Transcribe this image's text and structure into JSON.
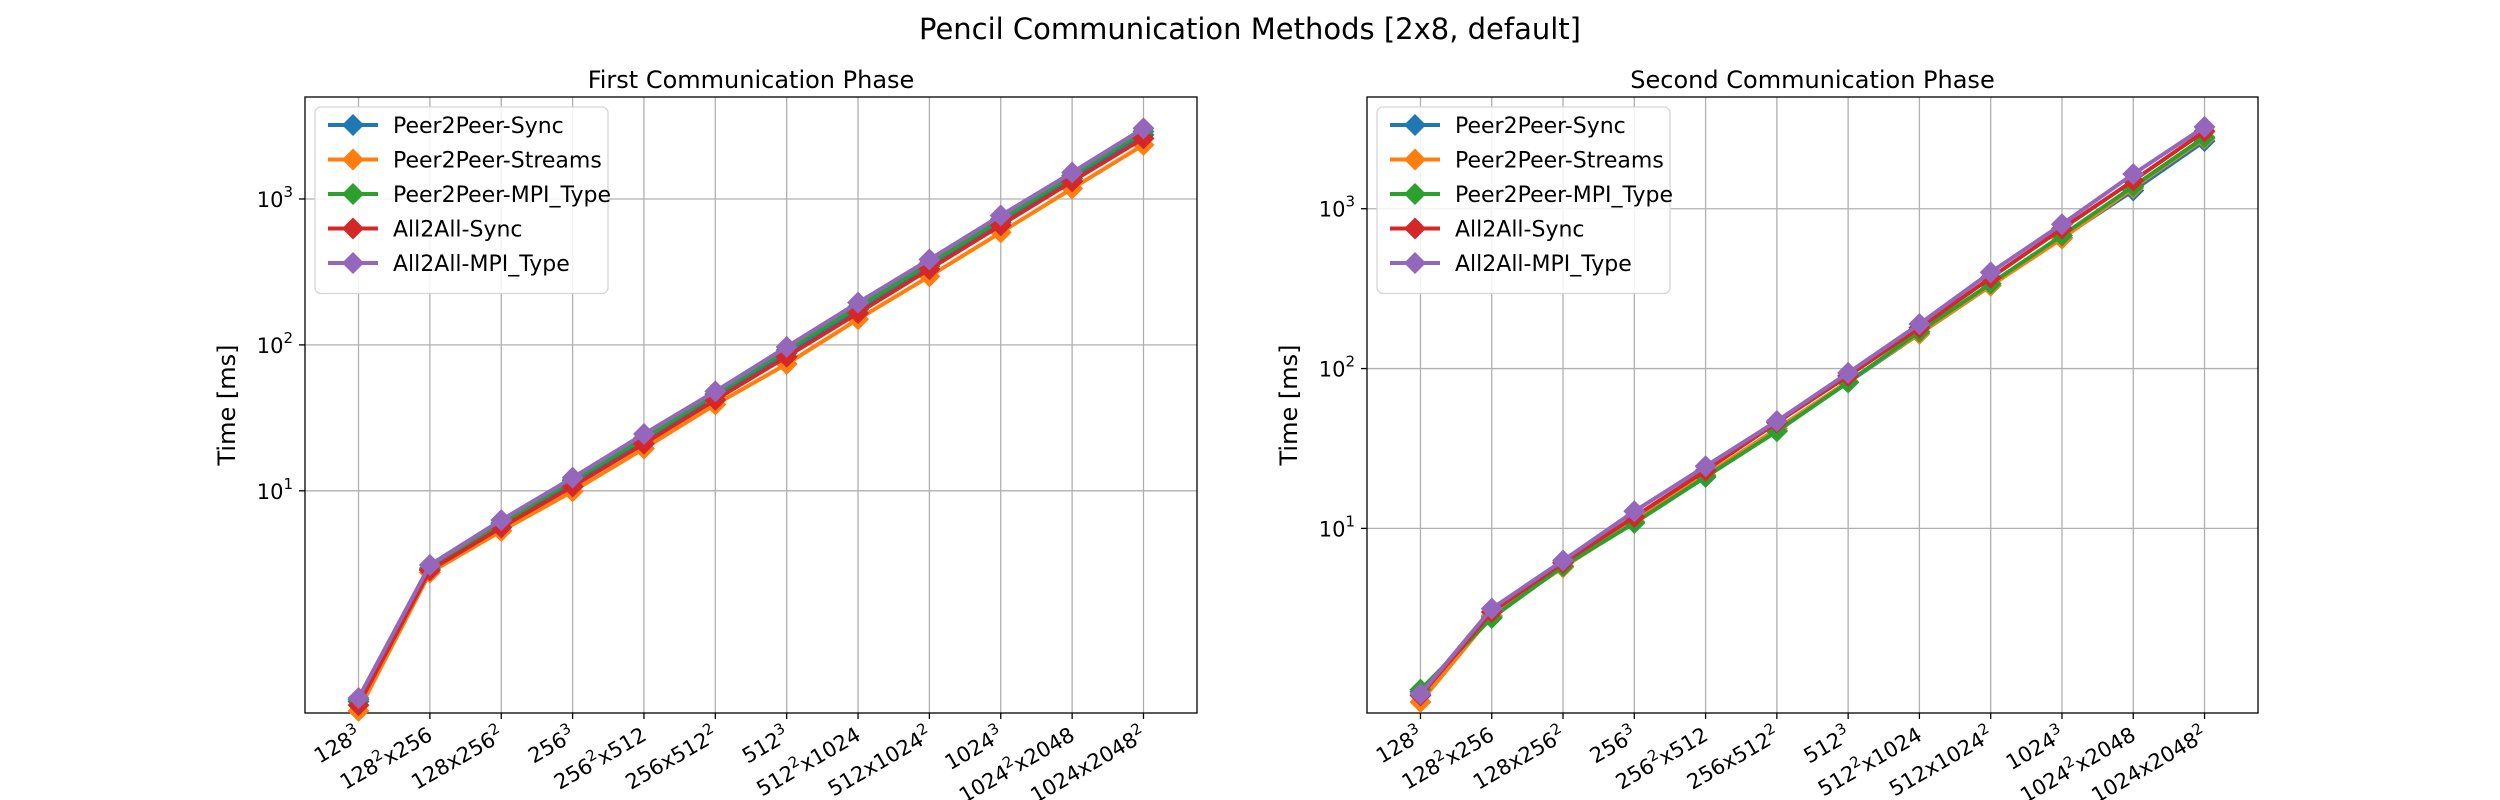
{
  "figure": {
    "title": "Pencil Communication Methods [2x8, default]"
  },
  "chart_data": [
    {
      "type": "line",
      "title": "First Communication Phase",
      "xlabel": "",
      "ylabel": "Time [ms]",
      "yscale": "log",
      "ylim": [
        0.3,
        5000
      ],
      "yticks": [
        {
          "base": "10",
          "exp": "1"
        },
        {
          "base": "10",
          "exp": "2"
        },
        {
          "base": "10",
          "exp": "3"
        }
      ],
      "grid": true,
      "legend_position": "top-left",
      "categories": [
        {
          "a": "128",
          "ae": "3",
          "b": "",
          "be": ""
        },
        {
          "a": "128",
          "ae": "2",
          "b": "x256",
          "be": ""
        },
        {
          "a": "128x256",
          "ae": "2",
          "b": "",
          "be": ""
        },
        {
          "a": "256",
          "ae": "3",
          "b": "",
          "be": ""
        },
        {
          "a": "256",
          "ae": "2",
          "b": "x512",
          "be": ""
        },
        {
          "a": "256x512",
          "ae": "2",
          "b": "",
          "be": ""
        },
        {
          "a": "512",
          "ae": "3",
          "b": "",
          "be": ""
        },
        {
          "a": "512",
          "ae": "2",
          "b": "x1024",
          "be": ""
        },
        {
          "a": "512x1024",
          "ae": "2",
          "b": "",
          "be": ""
        },
        {
          "a": "1024",
          "ae": "3",
          "b": "",
          "be": ""
        },
        {
          "a": "1024",
          "ae": "2",
          "b": "x2048",
          "be": ""
        },
        {
          "a": "1024x2048",
          "ae": "2",
          "b": "",
          "be": ""
        }
      ],
      "series": [
        {
          "name": "Peer2Peer-Sync",
          "color": "#1f77b4",
          "values": [
            0.36,
            2.9,
            5.8,
            11.5,
            22,
            44,
            88,
            175,
            345,
            690,
            1380,
            2750
          ]
        },
        {
          "name": "Peer2Peer-Streams",
          "color": "#ff7f0e",
          "values": [
            0.31,
            2.75,
            5.3,
            9.9,
            19.5,
            39,
            74,
            150,
            295,
            590,
            1180,
            2350
          ]
        },
        {
          "name": "Peer2Peer-MPI_Type",
          "color": "#2ca02c",
          "values": [
            0.37,
            2.95,
            6.0,
            11.8,
            23,
            46,
            92,
            182,
            362,
            725,
            1450,
            2900
          ]
        },
        {
          "name": "All2All-Sync",
          "color": "#d62728",
          "values": [
            0.34,
            2.85,
            5.6,
            10.7,
            21,
            42,
            83,
            165,
            330,
            660,
            1320,
            2600
          ]
        },
        {
          "name": "All2All-MPI_Type",
          "color": "#9467bd",
          "values": [
            0.38,
            3.1,
            6.3,
            12.3,
            24.5,
            48,
            97,
            195,
            385,
            770,
            1520,
            3050
          ]
        }
      ]
    },
    {
      "type": "line",
      "title": "Second Communication Phase",
      "xlabel": "",
      "ylabel": "Time [ms]",
      "yscale": "log",
      "ylim": [
        0.7,
        5000
      ],
      "yticks": [
        {
          "base": "10",
          "exp": "1"
        },
        {
          "base": "10",
          "exp": "2"
        },
        {
          "base": "10",
          "exp": "3"
        }
      ],
      "grid": true,
      "legend_position": "top-left",
      "categories": [
        {
          "a": "128",
          "ae": "3",
          "b": "",
          "be": ""
        },
        {
          "a": "128",
          "ae": "2",
          "b": "x256",
          "be": ""
        },
        {
          "a": "128x256",
          "ae": "2",
          "b": "",
          "be": ""
        },
        {
          "a": "256",
          "ae": "3",
          "b": "",
          "be": ""
        },
        {
          "a": "256",
          "ae": "2",
          "b": "x512",
          "be": ""
        },
        {
          "a": "256x512",
          "ae": "2",
          "b": "",
          "be": ""
        },
        {
          "a": "512",
          "ae": "3",
          "b": "",
          "be": ""
        },
        {
          "a": "512",
          "ae": "2",
          "b": "x1024",
          "be": ""
        },
        {
          "a": "512x1024",
          "ae": "2",
          "b": "",
          "be": ""
        },
        {
          "a": "1024",
          "ae": "3",
          "b": "",
          "be": ""
        },
        {
          "a": "1024",
          "ae": "2",
          "b": "x2048",
          "be": ""
        },
        {
          "a": "1024x2048",
          "ae": "2",
          "b": "",
          "be": ""
        }
      ],
      "series": [
        {
          "name": "Peer2Peer-Sync",
          "color": "#1f77b4",
          "values": [
            0.95,
            2.8,
            5.8,
            11.0,
            21,
            41,
            82,
            165,
            330,
            660,
            1300,
            2650
          ]
        },
        {
          "name": "Peer2Peer-Streams",
          "color": "#ff7f0e",
          "values": [
            0.82,
            2.85,
            5.7,
            11.0,
            21.5,
            42,
            83,
            165,
            330,
            650,
            1350,
            2750
          ]
        },
        {
          "name": "Peer2Peer-MPI_Type",
          "color": "#2ca02c",
          "values": [
            0.98,
            2.75,
            5.8,
            10.8,
            21,
            40.5,
            82,
            170,
            340,
            680,
            1380,
            2800
          ]
        },
        {
          "name": "All2All-Sync",
          "color": "#d62728",
          "values": [
            0.9,
            3.0,
            6.1,
            11.8,
            23,
            46,
            90,
            180,
            370,
            750,
            1500,
            3050
          ]
        },
        {
          "name": "All2All-MPI_Type",
          "color": "#9467bd",
          "values": [
            0.92,
            3.15,
            6.3,
            12.8,
            24.5,
            47,
            94,
            190,
            400,
            800,
            1650,
            3250
          ]
        }
      ]
    }
  ]
}
